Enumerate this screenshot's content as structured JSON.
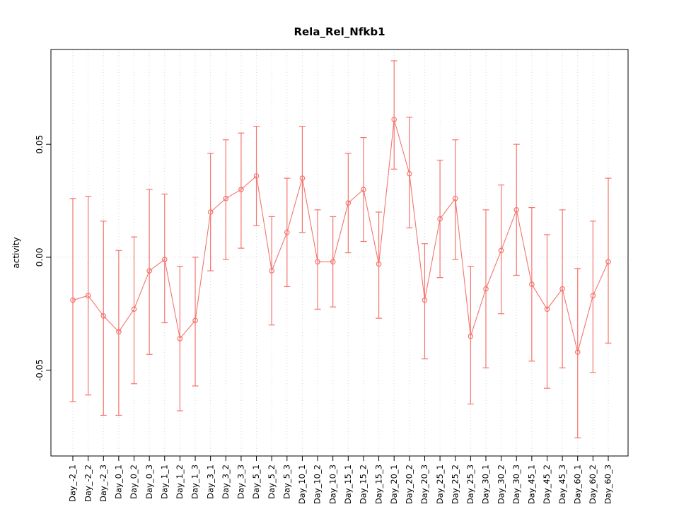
{
  "chart_data": {
    "type": "line",
    "title": "Rela_Rel_Nfkb1",
    "ylabel": "activity",
    "xlabel": "",
    "grid": "vertical-dotted-per-category",
    "zero_line": true,
    "legend": "none",
    "point_style": "open-circle",
    "error_bars": true,
    "ylim": [
      -0.088,
      0.092
    ],
    "yticks": [
      {
        "value": -0.05,
        "label": "-0.05"
      },
      {
        "value": 0.0,
        "label": "0.00"
      },
      {
        "value": 0.05,
        "label": "0.05"
      }
    ],
    "categories": [
      "Day_-2_1",
      "Day_-2_2",
      "Day_-2_3",
      "Day_0_1",
      "Day_0_2",
      "Day_0_3",
      "Day_1_1",
      "Day_1_2",
      "Day_1_3",
      "Day_3_1",
      "Day_3_2",
      "Day_3_3",
      "Day_5_1",
      "Day_5_2",
      "Day_5_3",
      "Day_10_1",
      "Day_10_2",
      "Day_10_3",
      "Day_15_1",
      "Day_15_2",
      "Day_15_3",
      "Day_20_1",
      "Day_20_2",
      "Day_20_3",
      "Day_25_1",
      "Day_25_2",
      "Day_25_3",
      "Day_30_1",
      "Day_30_2",
      "Day_30_3",
      "Day_45_1",
      "Day_45_2",
      "Day_45_3",
      "Day_60_1",
      "Day_60_2",
      "Day_60_3"
    ],
    "series": [
      {
        "name": "activity",
        "values": [
          -0.019,
          -0.017,
          -0.026,
          -0.033,
          -0.023,
          -0.006,
          -0.001,
          -0.036,
          -0.028,
          0.02,
          0.026,
          0.03,
          0.036,
          -0.006,
          0.011,
          0.035,
          -0.002,
          -0.002,
          0.024,
          0.03,
          -0.003,
          0.061,
          0.037,
          -0.019,
          0.017,
          0.026,
          -0.035,
          -0.014,
          0.003,
          0.021,
          -0.012,
          -0.023,
          -0.014,
          -0.042,
          -0.017,
          -0.002
        ],
        "lower": [
          -0.064,
          -0.061,
          -0.07,
          -0.07,
          -0.056,
          -0.043,
          -0.029,
          -0.068,
          -0.057,
          -0.006,
          -0.001,
          0.004,
          0.014,
          -0.03,
          -0.013,
          0.011,
          -0.023,
          -0.022,
          0.002,
          0.007,
          -0.027,
          0.039,
          0.013,
          -0.045,
          -0.009,
          -0.001,
          -0.065,
          -0.049,
          -0.025,
          -0.008,
          -0.046,
          -0.058,
          -0.049,
          -0.08,
          -0.051,
          -0.038
        ],
        "upper": [
          0.026,
          0.027,
          0.016,
          0.003,
          0.009,
          0.03,
          0.028,
          -0.004,
          0.0,
          0.046,
          0.052,
          0.055,
          0.058,
          0.018,
          0.035,
          0.058,
          0.021,
          0.018,
          0.046,
          0.053,
          0.02,
          0.087,
          0.062,
          0.006,
          0.043,
          0.052,
          -0.004,
          0.021,
          0.032,
          0.05,
          0.022,
          0.01,
          0.021,
          -0.005,
          0.016,
          0.035
        ]
      }
    ],
    "colors": {
      "series": "#f4756e",
      "grid": "#d9d9d9",
      "zero_line": "#d9d9d9",
      "axis": "#000000",
      "text": "#000000",
      "background": "#ffffff"
    }
  }
}
